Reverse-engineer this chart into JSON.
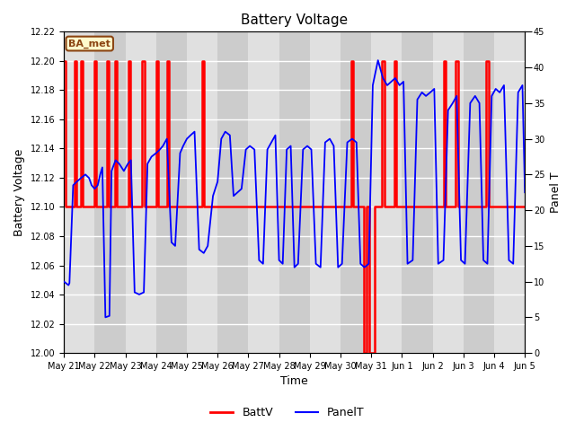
{
  "title": "Battery Voltage",
  "xlabel": "Time",
  "ylabel_left": "Battery Voltage",
  "ylabel_right": "Panel T",
  "ylim_left": [
    12.0,
    12.22
  ],
  "ylim_right": [
    0,
    45
  ],
  "yticks_left": [
    12.0,
    12.02,
    12.04,
    12.06,
    12.08,
    12.1,
    12.12,
    12.14,
    12.16,
    12.18,
    12.2,
    12.22
  ],
  "yticks_right": [
    0,
    5,
    10,
    15,
    20,
    25,
    30,
    35,
    40,
    45
  ],
  "annotation_text": "BA_met",
  "annotation_color": "#8B4513",
  "annotation_bg": "#FFFACD",
  "bg_color": "#E0E0E0",
  "bg_alt_color": "#CCCCCC",
  "grid_color": "white",
  "batt_color": "red",
  "panel_color": "blue",
  "batt_lw": 1.8,
  "panel_lw": 1.3,
  "xtick_labels": [
    "May 21",
    "May 22",
    "May 23",
    "May 24",
    "May 25",
    "May 26",
    "May 27",
    "May 28",
    "May 29",
    "May 30",
    "May 31",
    "Jun 1",
    "Jun 2",
    "Jun 3",
    "Jun 4",
    "Jun 5"
  ],
  "batt_step_data": [
    [
      0.0,
      12.2
    ],
    [
      0.05,
      12.2
    ],
    [
      0.05,
      12.1
    ],
    [
      0.35,
      12.1
    ],
    [
      0.35,
      12.2
    ],
    [
      0.4,
      12.2
    ],
    [
      0.4,
      12.1
    ],
    [
      0.55,
      12.1
    ],
    [
      0.55,
      12.2
    ],
    [
      0.62,
      12.2
    ],
    [
      0.62,
      12.1
    ],
    [
      1.0,
      12.1
    ],
    [
      1.0,
      12.2
    ],
    [
      1.05,
      12.2
    ],
    [
      1.05,
      12.1
    ],
    [
      1.4,
      12.1
    ],
    [
      1.4,
      12.2
    ],
    [
      1.47,
      12.2
    ],
    [
      1.47,
      12.1
    ],
    [
      1.65,
      12.1
    ],
    [
      1.65,
      12.2
    ],
    [
      1.72,
      12.2
    ],
    [
      1.72,
      12.1
    ],
    [
      2.1,
      12.1
    ],
    [
      2.1,
      12.2
    ],
    [
      2.17,
      12.2
    ],
    [
      2.17,
      12.1
    ],
    [
      2.55,
      12.1
    ],
    [
      2.55,
      12.2
    ],
    [
      2.62,
      12.2
    ],
    [
      2.62,
      12.1
    ],
    [
      3.0,
      12.1
    ],
    [
      3.0,
      12.2
    ],
    [
      3.07,
      12.2
    ],
    [
      3.07,
      12.1
    ],
    [
      3.35,
      12.1
    ],
    [
      3.35,
      12.2
    ],
    [
      3.42,
      12.2
    ],
    [
      3.42,
      12.1
    ],
    [
      4.5,
      12.1
    ],
    [
      4.5,
      12.2
    ],
    [
      4.57,
      12.2
    ],
    [
      4.57,
      12.1
    ],
    [
      9.35,
      12.1
    ],
    [
      9.35,
      12.2
    ],
    [
      9.42,
      12.2
    ],
    [
      9.42,
      12.1
    ],
    [
      9.75,
      12.1
    ],
    [
      9.75,
      12.0
    ],
    [
      9.85,
      12.0
    ],
    [
      9.85,
      12.1
    ],
    [
      9.95,
      12.1
    ],
    [
      9.95,
      12.0
    ],
    [
      10.12,
      12.0
    ],
    [
      10.12,
      12.1
    ],
    [
      10.35,
      12.1
    ],
    [
      10.35,
      12.2
    ],
    [
      10.42,
      12.2
    ],
    [
      10.42,
      12.1
    ],
    [
      10.75,
      12.1
    ],
    [
      10.75,
      12.2
    ],
    [
      10.82,
      12.2
    ],
    [
      10.82,
      12.1
    ],
    [
      12.35,
      12.1
    ],
    [
      12.35,
      12.2
    ],
    [
      12.42,
      12.2
    ],
    [
      12.42,
      12.1
    ],
    [
      12.75,
      12.1
    ],
    [
      12.75,
      12.2
    ],
    [
      12.82,
      12.2
    ],
    [
      12.82,
      12.1
    ],
    [
      13.75,
      12.1
    ],
    [
      13.75,
      12.2
    ],
    [
      13.82,
      12.2
    ],
    [
      13.82,
      12.1
    ],
    [
      15.0,
      12.1
    ]
  ],
  "panel_data": [
    [
      0.0,
      10.0
    ],
    [
      0.15,
      9.5
    ],
    [
      0.18,
      9.8
    ],
    [
      0.3,
      23.5
    ],
    [
      0.42,
      24.0
    ],
    [
      0.55,
      24.5
    ],
    [
      0.7,
      25.0
    ],
    [
      0.82,
      24.5
    ],
    [
      0.9,
      23.5
    ],
    [
      1.0,
      23.0
    ],
    [
      1.1,
      23.5
    ],
    [
      1.18,
      25.0
    ],
    [
      1.25,
      26.0
    ],
    [
      1.35,
      5.0
    ],
    [
      1.48,
      5.2
    ],
    [
      1.55,
      25.5
    ],
    [
      1.68,
      27.0
    ],
    [
      1.8,
      26.5
    ],
    [
      1.95,
      25.5
    ],
    [
      2.08,
      26.5
    ],
    [
      2.18,
      27.0
    ],
    [
      2.3,
      8.5
    ],
    [
      2.45,
      8.2
    ],
    [
      2.6,
      8.5
    ],
    [
      2.72,
      26.5
    ],
    [
      2.85,
      27.5
    ],
    [
      3.0,
      28.0
    ],
    [
      3.12,
      28.5
    ],
    [
      3.22,
      29.0
    ],
    [
      3.35,
      30.0
    ],
    [
      3.5,
      15.5
    ],
    [
      3.62,
      15.0
    ],
    [
      3.78,
      28.0
    ],
    [
      3.88,
      29.0
    ],
    [
      4.0,
      30.0
    ],
    [
      4.12,
      30.5
    ],
    [
      4.25,
      31.0
    ],
    [
      4.4,
      14.5
    ],
    [
      4.55,
      14.0
    ],
    [
      4.68,
      15.0
    ],
    [
      4.85,
      22.0
    ],
    [
      5.0,
      24.0
    ],
    [
      5.12,
      30.0
    ],
    [
      5.25,
      31.0
    ],
    [
      5.4,
      30.5
    ],
    [
      5.52,
      22.0
    ],
    [
      5.65,
      22.5
    ],
    [
      5.78,
      23.0
    ],
    [
      5.92,
      28.5
    ],
    [
      6.05,
      29.0
    ],
    [
      6.2,
      28.5
    ],
    [
      6.35,
      13.0
    ],
    [
      6.48,
      12.5
    ],
    [
      6.62,
      28.5
    ],
    [
      6.75,
      29.5
    ],
    [
      6.88,
      30.5
    ],
    [
      7.0,
      13.0
    ],
    [
      7.12,
      12.5
    ],
    [
      7.25,
      28.5
    ],
    [
      7.38,
      29.0
    ],
    [
      7.5,
      12.0
    ],
    [
      7.62,
      12.5
    ],
    [
      7.78,
      28.5
    ],
    [
      7.92,
      29.0
    ],
    [
      8.05,
      28.5
    ],
    [
      8.2,
      12.5
    ],
    [
      8.35,
      12.0
    ],
    [
      8.5,
      29.5
    ],
    [
      8.65,
      30.0
    ],
    [
      8.78,
      29.0
    ],
    [
      8.92,
      12.0
    ],
    [
      9.05,
      12.5
    ],
    [
      9.22,
      29.5
    ],
    [
      9.38,
      30.0
    ],
    [
      9.52,
      29.5
    ],
    [
      9.65,
      12.5
    ],
    [
      9.78,
      12.0
    ],
    [
      9.92,
      12.5
    ],
    [
      10.05,
      37.5
    ],
    [
      10.22,
      41.0
    ],
    [
      10.38,
      38.5
    ],
    [
      10.52,
      37.5
    ],
    [
      10.65,
      38.0
    ],
    [
      10.78,
      38.5
    ],
    [
      10.92,
      37.5
    ],
    [
      11.05,
      38.0
    ],
    [
      11.18,
      12.5
    ],
    [
      11.35,
      13.0
    ],
    [
      11.5,
      35.5
    ],
    [
      11.65,
      36.5
    ],
    [
      11.78,
      36.0
    ],
    [
      11.92,
      36.5
    ],
    [
      12.05,
      37.0
    ],
    [
      12.18,
      12.5
    ],
    [
      12.35,
      13.0
    ],
    [
      12.5,
      34.0
    ],
    [
      12.65,
      35.0
    ],
    [
      12.78,
      36.0
    ],
    [
      12.92,
      13.0
    ],
    [
      13.05,
      12.5
    ],
    [
      13.22,
      35.0
    ],
    [
      13.38,
      36.0
    ],
    [
      13.52,
      35.0
    ],
    [
      13.65,
      13.0
    ],
    [
      13.78,
      12.5
    ],
    [
      13.92,
      36.0
    ],
    [
      14.05,
      37.0
    ],
    [
      14.18,
      36.5
    ],
    [
      14.32,
      37.5
    ],
    [
      14.48,
      13.0
    ],
    [
      14.62,
      12.5
    ],
    [
      14.78,
      36.5
    ],
    [
      14.92,
      37.5
    ],
    [
      15.0,
      22.5
    ]
  ]
}
